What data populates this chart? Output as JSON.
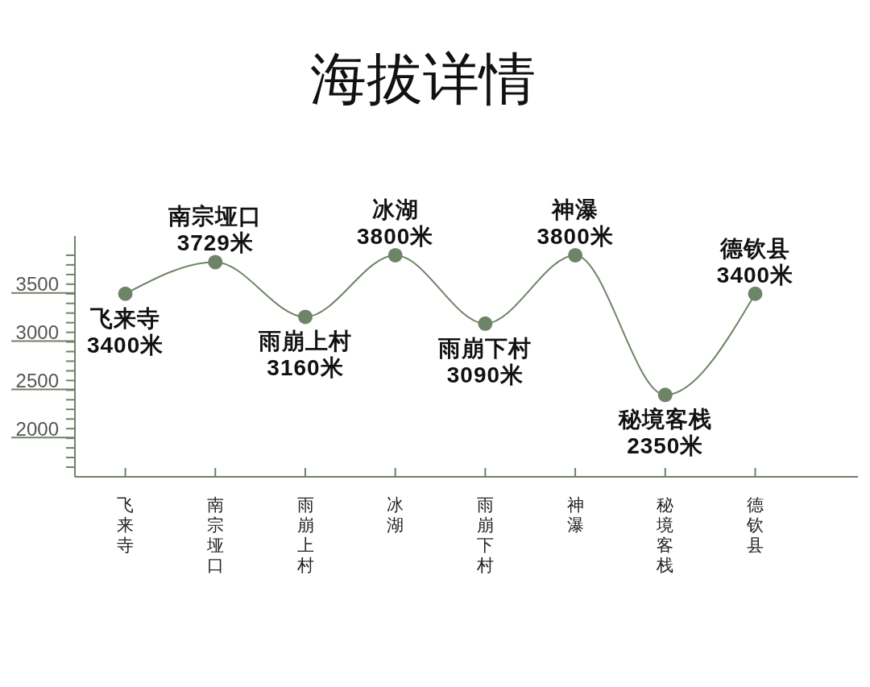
{
  "chart_data": {
    "type": "line",
    "title": "海拔详情",
    "categories": [
      "飞来寺",
      "南宗垭口",
      "雨崩上村",
      "冰湖",
      "雨崩下村",
      "神瀑",
      "秘境客栈",
      "德钦县"
    ],
    "values": [
      3400,
      3729,
      3160,
      3800,
      3090,
      3800,
      2350,
      3400
    ],
    "value_labels": [
      "飞来寺\n3400米",
      "南宗垭口\n3729米",
      "雨崩上村\n3160米",
      "冰湖\n3800米",
      "雨崩下村\n3090米",
      "神瀑\n3800米",
      "秘境客栈\n2350米",
      "德钦县\n3400米"
    ],
    "color": "#6e8467",
    "marker": "circle",
    "line_style": "solid",
    "ylim": [
      1500,
      4000
    ],
    "yticks": [
      {
        "value": 1600,
        "label": null
      },
      {
        "value": 1700,
        "label": null
      },
      {
        "value": 1800,
        "label": null
      },
      {
        "value": 1900,
        "label": null
      },
      2000,
      {
        "value": 2100,
        "label": null
      },
      {
        "value": 2200,
        "label": null
      },
      {
        "value": 2300,
        "label": null
      },
      {
        "value": 2400,
        "label": null
      },
      2500,
      {
        "value": 2600,
        "label": null
      },
      {
        "value": 2700,
        "label": null
      },
      {
        "value": 2800,
        "label": null
      },
      {
        "value": 2900,
        "label": null
      },
      3000,
      {
        "value": 3100,
        "label": null
      },
      {
        "value": 3200,
        "label": null
      },
      {
        "value": 3300,
        "label": null
      },
      {
        "value": 3400,
        "label": null
      },
      3500,
      {
        "value": 3600,
        "label": null
      },
      {
        "value": 3700,
        "label": null
      },
      {
        "value": 3800,
        "label": null
      }
    ]
  }
}
